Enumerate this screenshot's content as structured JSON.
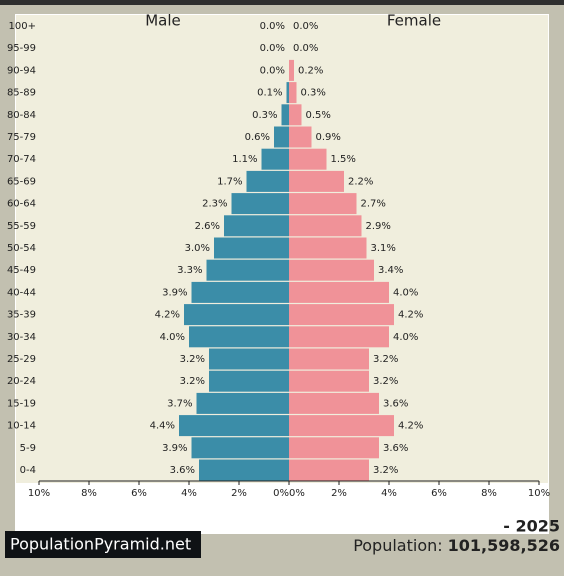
{
  "chart_data": {
    "type": "pyramid",
    "categories": [
      "100+",
      "95-99",
      "90-94",
      "85-89",
      "80-84",
      "75-79",
      "70-74",
      "65-69",
      "60-64",
      "55-59",
      "50-54",
      "45-49",
      "40-44",
      "35-39",
      "30-34",
      "25-29",
      "20-24",
      "15-19",
      "10-14",
      "5-9",
      "0-4"
    ],
    "series": [
      {
        "name": "Male",
        "color": "#3b8da8",
        "values": [
          0.0,
          0.0,
          0.0,
          0.1,
          0.3,
          0.6,
          1.1,
          1.7,
          2.3,
          2.6,
          3.0,
          3.3,
          3.9,
          4.2,
          4.0,
          3.2,
          3.2,
          3.7,
          4.4,
          3.9,
          3.6
        ],
        "value_labels": [
          "0.0%",
          "0.0%",
          "0.0%",
          "0.1%",
          "0.3%",
          "0.6%",
          "1.1%",
          "1.7%",
          "2.3%",
          "2.6%",
          "3.0%",
          "3.3%",
          "3.9%",
          "4.2%",
          "4.0%",
          "3.2%",
          "3.2%",
          "3.7%",
          "4.4%",
          "3.9%",
          "3.6%"
        ]
      },
      {
        "name": "Female",
        "color": "#f09298",
        "values": [
          0.0,
          0.0,
          0.2,
          0.3,
          0.5,
          0.9,
          1.5,
          2.2,
          2.7,
          2.9,
          3.1,
          3.4,
          4.0,
          4.2,
          4.0,
          3.2,
          3.2,
          3.6,
          4.2,
          3.6,
          3.2
        ],
        "value_labels": [
          "0.0%",
          "0.0%",
          "0.2%",
          "0.3%",
          "0.5%",
          "0.9%",
          "1.5%",
          "2.2%",
          "2.7%",
          "2.9%",
          "3.1%",
          "3.4%",
          "4.0%",
          "4.2%",
          "4.0%",
          "3.2%",
          "3.2%",
          "3.6%",
          "4.2%",
          "3.6%",
          "3.2%"
        ]
      }
    ],
    "xlim": [
      0,
      10
    ],
    "xticks": [
      {
        "value": 0,
        "label": "0%"
      },
      {
        "value": 2,
        "label": "2%"
      },
      {
        "value": 4,
        "label": "4%"
      },
      {
        "value": 6,
        "label": "6%"
      },
      {
        "value": 8,
        "label": "8%"
      },
      {
        "value": 10,
        "label": "10%"
      }
    ],
    "year": "- 2025",
    "population_label": "Population:",
    "population": "101,598,526",
    "logo": "PopulationPyramid.net"
  }
}
